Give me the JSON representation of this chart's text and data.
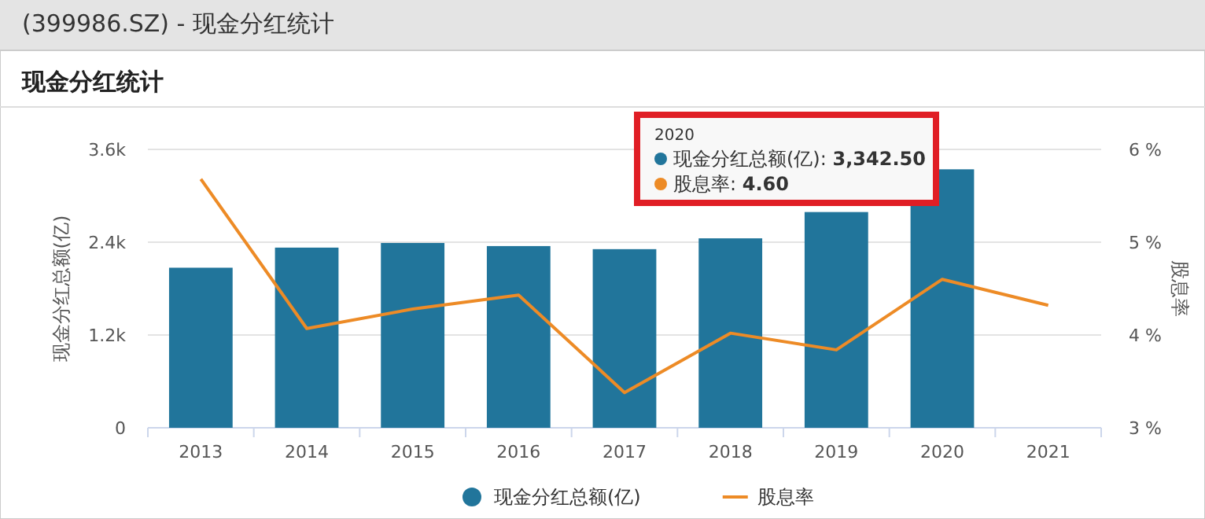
{
  "chart_data": {
    "type": "bar",
    "title": "现金分红统计",
    "annotations": [
      "(399986.SZ) - 现金分红统计",
      "2020",
      "现金分红总额(亿): **3,342.50**",
      "股息率: **4.60**"
    ],
    "ylabel": "现金分红总额(亿)",
    "y2label": "股息率",
    "categories": [
      "2013",
      "2014",
      "2015",
      "2016",
      "2017",
      "2018",
      "2019",
      "2020",
      "2021"
    ],
    "series": [
      {
        "name": "现金分红总额(亿)",
        "color": "#21759b",
        "values": [
          2070,
          2330,
          2390,
          2350,
          2310,
          2450,
          2790,
          3342.5,
          null
        ]
      },
      {
        "name": "股息率",
        "type": "line",
        "axis": "y2",
        "color": "#ed8b26",
        "values": [
          5.68,
          4.07,
          4.28,
          4.43,
          3.38,
          4.02,
          3.84,
          4.6,
          4.32
        ]
      }
    ],
    "ylim": [
      0,
      3600
    ],
    "yticks": [
      0,
      {
        "value": 1200,
        "label": "1.2k"
      },
      {
        "value": 2400,
        "label": "2.4k"
      },
      {
        "value": 3600,
        "label": "3.6k"
      }
    ],
    "y2lim": [
      3,
      6
    ],
    "y2ticks": [
      {
        "value": 3,
        "label": "3 %"
      },
      {
        "value": 4,
        "label": "4 %"
      },
      {
        "value": 5,
        "label": "5 %"
      },
      {
        "value": 6,
        "label": "6 %"
      }
    ],
    "grid": "y",
    "legend": "bottom"
  }
}
